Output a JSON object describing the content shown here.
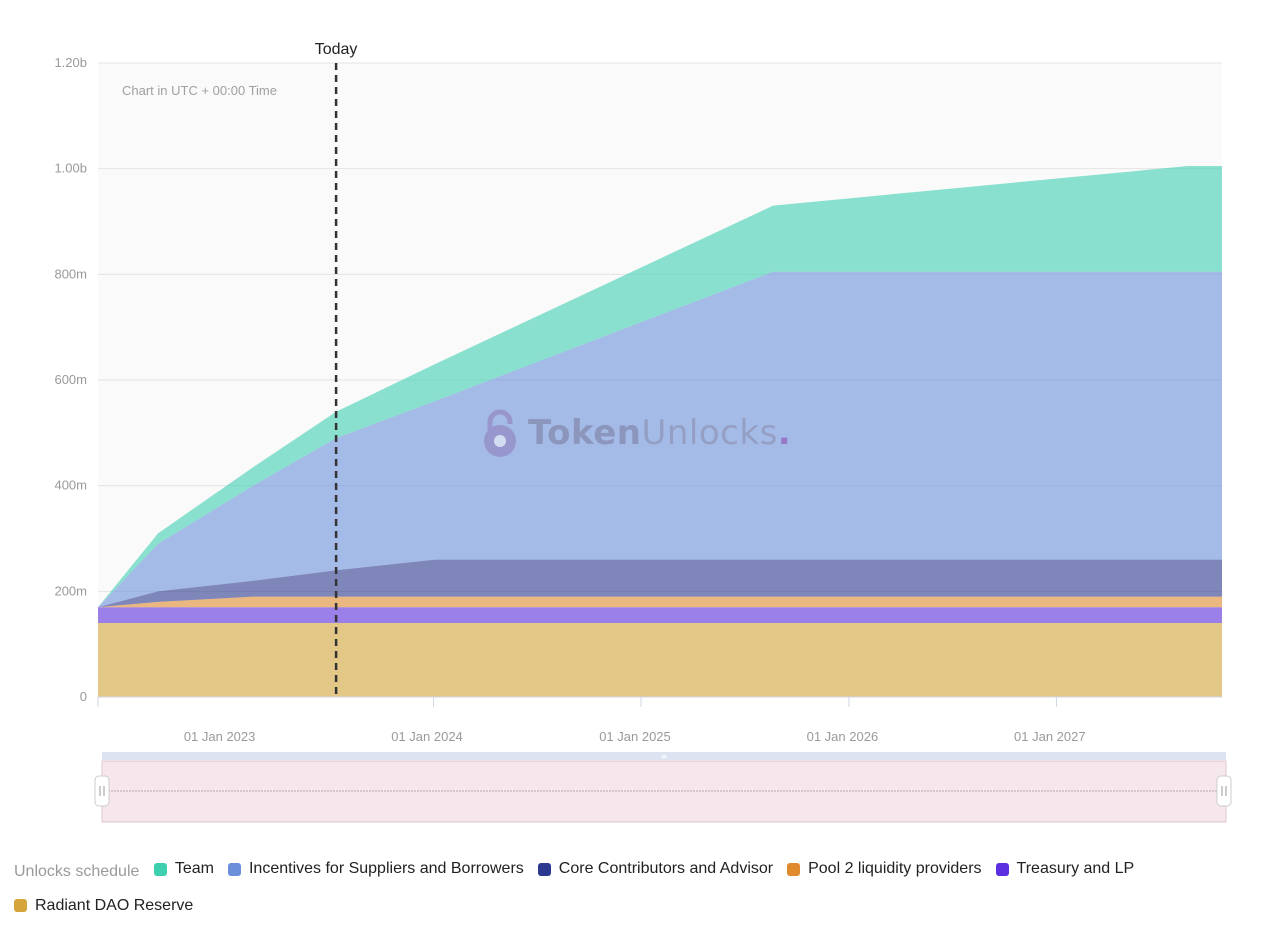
{
  "chart_data": {
    "type": "area",
    "stacked": true,
    "x_axis": {
      "min": "2022-06-01",
      "max": "2027-10-31",
      "tick_labels": [
        "01 Jan 2023",
        "01 Jan 2024",
        "01 Jan 2025",
        "01 Jan 2026",
        "01 Jan 2027"
      ]
    },
    "y_axis": {
      "min": 0,
      "max": 1200000000,
      "tick_labels": [
        "0",
        "200m",
        "400m",
        "600m",
        "800m",
        "1.00b",
        "1.20b"
      ]
    },
    "note": "Chart in UTC + 00:00 Time",
    "today_label": "Today",
    "today_date": "2023-07-25",
    "grid": true,
    "legend_position": "bottom-left",
    "legend_title": "Unlocks schedule",
    "x": [
      "2022-06-01",
      "2022-09-15",
      "2023-03-01",
      "2023-07-25",
      "2024-01-15",
      "2025-09-01",
      "2027-09-01",
      "2027-10-31"
    ],
    "series": [
      {
        "name": "Radiant DAO Reserve",
        "color": "#d4a53a",
        "values": [
          140000000,
          140000000,
          140000000,
          140000000,
          140000000,
          140000000,
          140000000,
          140000000
        ]
      },
      {
        "name": "Treasury and LP",
        "color": "#5b2ee0",
        "values": [
          30000000,
          30000000,
          30000000,
          30000000,
          30000000,
          30000000,
          30000000,
          30000000
        ]
      },
      {
        "name": "Pool 2 liquidity providers",
        "color": "#e08a2e",
        "values": [
          0,
          10000000,
          20000000,
          20000000,
          20000000,
          20000000,
          20000000,
          20000000
        ]
      },
      {
        "name": "Core Contributors and Advisor",
        "color": "#2b3990",
        "values": [
          0,
          20000000,
          30000000,
          50000000,
          70000000,
          70000000,
          70000000,
          70000000
        ]
      },
      {
        "name": "Incentives for Suppliers and Borrowers",
        "color": "#6b8fdb",
        "values": [
          0,
          90000000,
          180000000,
          250000000,
          300000000,
          545000000,
          545000000,
          545000000
        ]
      },
      {
        "name": "Team",
        "color": "#3ecfb0",
        "values": [
          0,
          20000000,
          35000000,
          50000000,
          70000000,
          125000000,
          200000000,
          200000000
        ]
      }
    ]
  },
  "legend": {
    "title": "Unlocks schedule",
    "items": [
      {
        "label": "Team",
        "color": "#3ecfb0"
      },
      {
        "label": "Incentives for Suppliers and Borrowers",
        "color": "#6b8fdb"
      },
      {
        "label": "Core Contributors and Advisor",
        "color": "#2b3990"
      },
      {
        "label": "Pool 2 liquidity providers",
        "color": "#e08a2e"
      },
      {
        "label": "Treasury and LP",
        "color": "#5b2ee0"
      },
      {
        "label": "Radiant DAO Reserve",
        "color": "#d4a53a"
      }
    ]
  },
  "watermark": {
    "word_a": "Token",
    "word_b": "Unlocks",
    "dot": ".",
    "icon": "lock-icon"
  }
}
